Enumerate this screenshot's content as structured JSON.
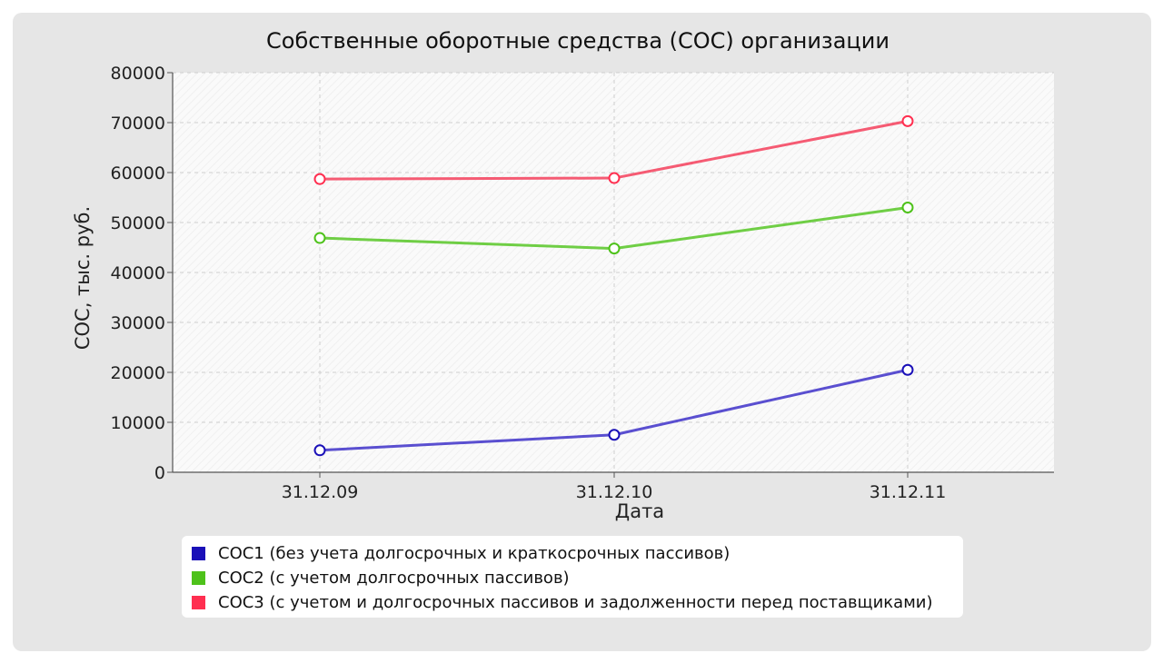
{
  "chart_data": {
    "type": "line",
    "title": "Собственные оборотные средства (СОС) организации",
    "xlabel": "Дата",
    "ylabel": "СОС, тыс. руб.",
    "categories": [
      "31.12.09",
      "31.12.10",
      "31.12.11"
    ],
    "ylim": [
      0,
      80000
    ],
    "yticks": [
      "0",
      "10000",
      "20000",
      "30000",
      "40000",
      "50000",
      "60000",
      "70000",
      "80000"
    ],
    "grid": true,
    "legend_position": "bottom",
    "series": [
      {
        "name": "СОС1 (без учета долгосрочных и краткосрочных пассивов)",
        "color": "#1a10b8",
        "line_color": "#5a4fd0",
        "values": [
          4400,
          7500,
          20500
        ]
      },
      {
        "name": "СОС2 (с учетом долгосрочных пассивов)",
        "color": "#4ec21a",
        "line_color": "#6fce45",
        "values": [
          46900,
          44800,
          53000
        ]
      },
      {
        "name": "СОС3 (с учетом и долгосрочных пассивов и задолженности перед поставщиками)",
        "color": "#ff2f50",
        "line_color": "#f55b73",
        "values": [
          58700,
          58900,
          70300
        ]
      }
    ]
  }
}
